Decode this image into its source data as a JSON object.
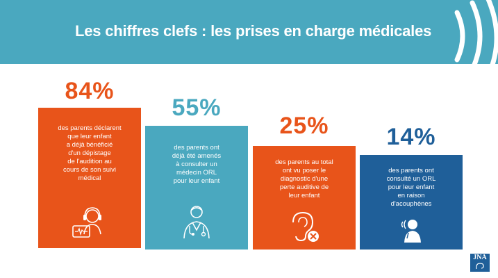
{
  "header": {
    "title": "Les chiffres clefs : les prises en charge médicales"
  },
  "colors": {
    "teal": "#4aa8bf",
    "orange": "#e8541a",
    "navy": "#1f5f99"
  },
  "stats": [
    {
      "percent": "84%",
      "lines": [
        "des parents déclarent",
        "que leur enfant",
        "a déjà bénéficié",
        "d'un dépistage",
        "de l'audition au",
        "cours de son suivi",
        "médical"
      ],
      "icon": "hearing-test-icon"
    },
    {
      "percent": "55%",
      "lines": [
        "des parents ont",
        "déjà été amenés",
        "à consulter un",
        "médecin ORL",
        "pour leur enfant"
      ],
      "icon": "doctor-icon"
    },
    {
      "percent": "25%",
      "lines": [
        "des parents au total",
        "ont vu poser le",
        "diagnostic d'une",
        "perte auditive de",
        "leur enfant"
      ],
      "icon": "hearing-loss-icon"
    },
    {
      "percent": "14%",
      "lines": [
        "des parents ont",
        "consulté un ORL",
        "pour leur enfant",
        "en raison",
        "d'acouphènes"
      ],
      "icon": "tinnitus-icon"
    }
  ],
  "logo": {
    "text": "JNA"
  }
}
